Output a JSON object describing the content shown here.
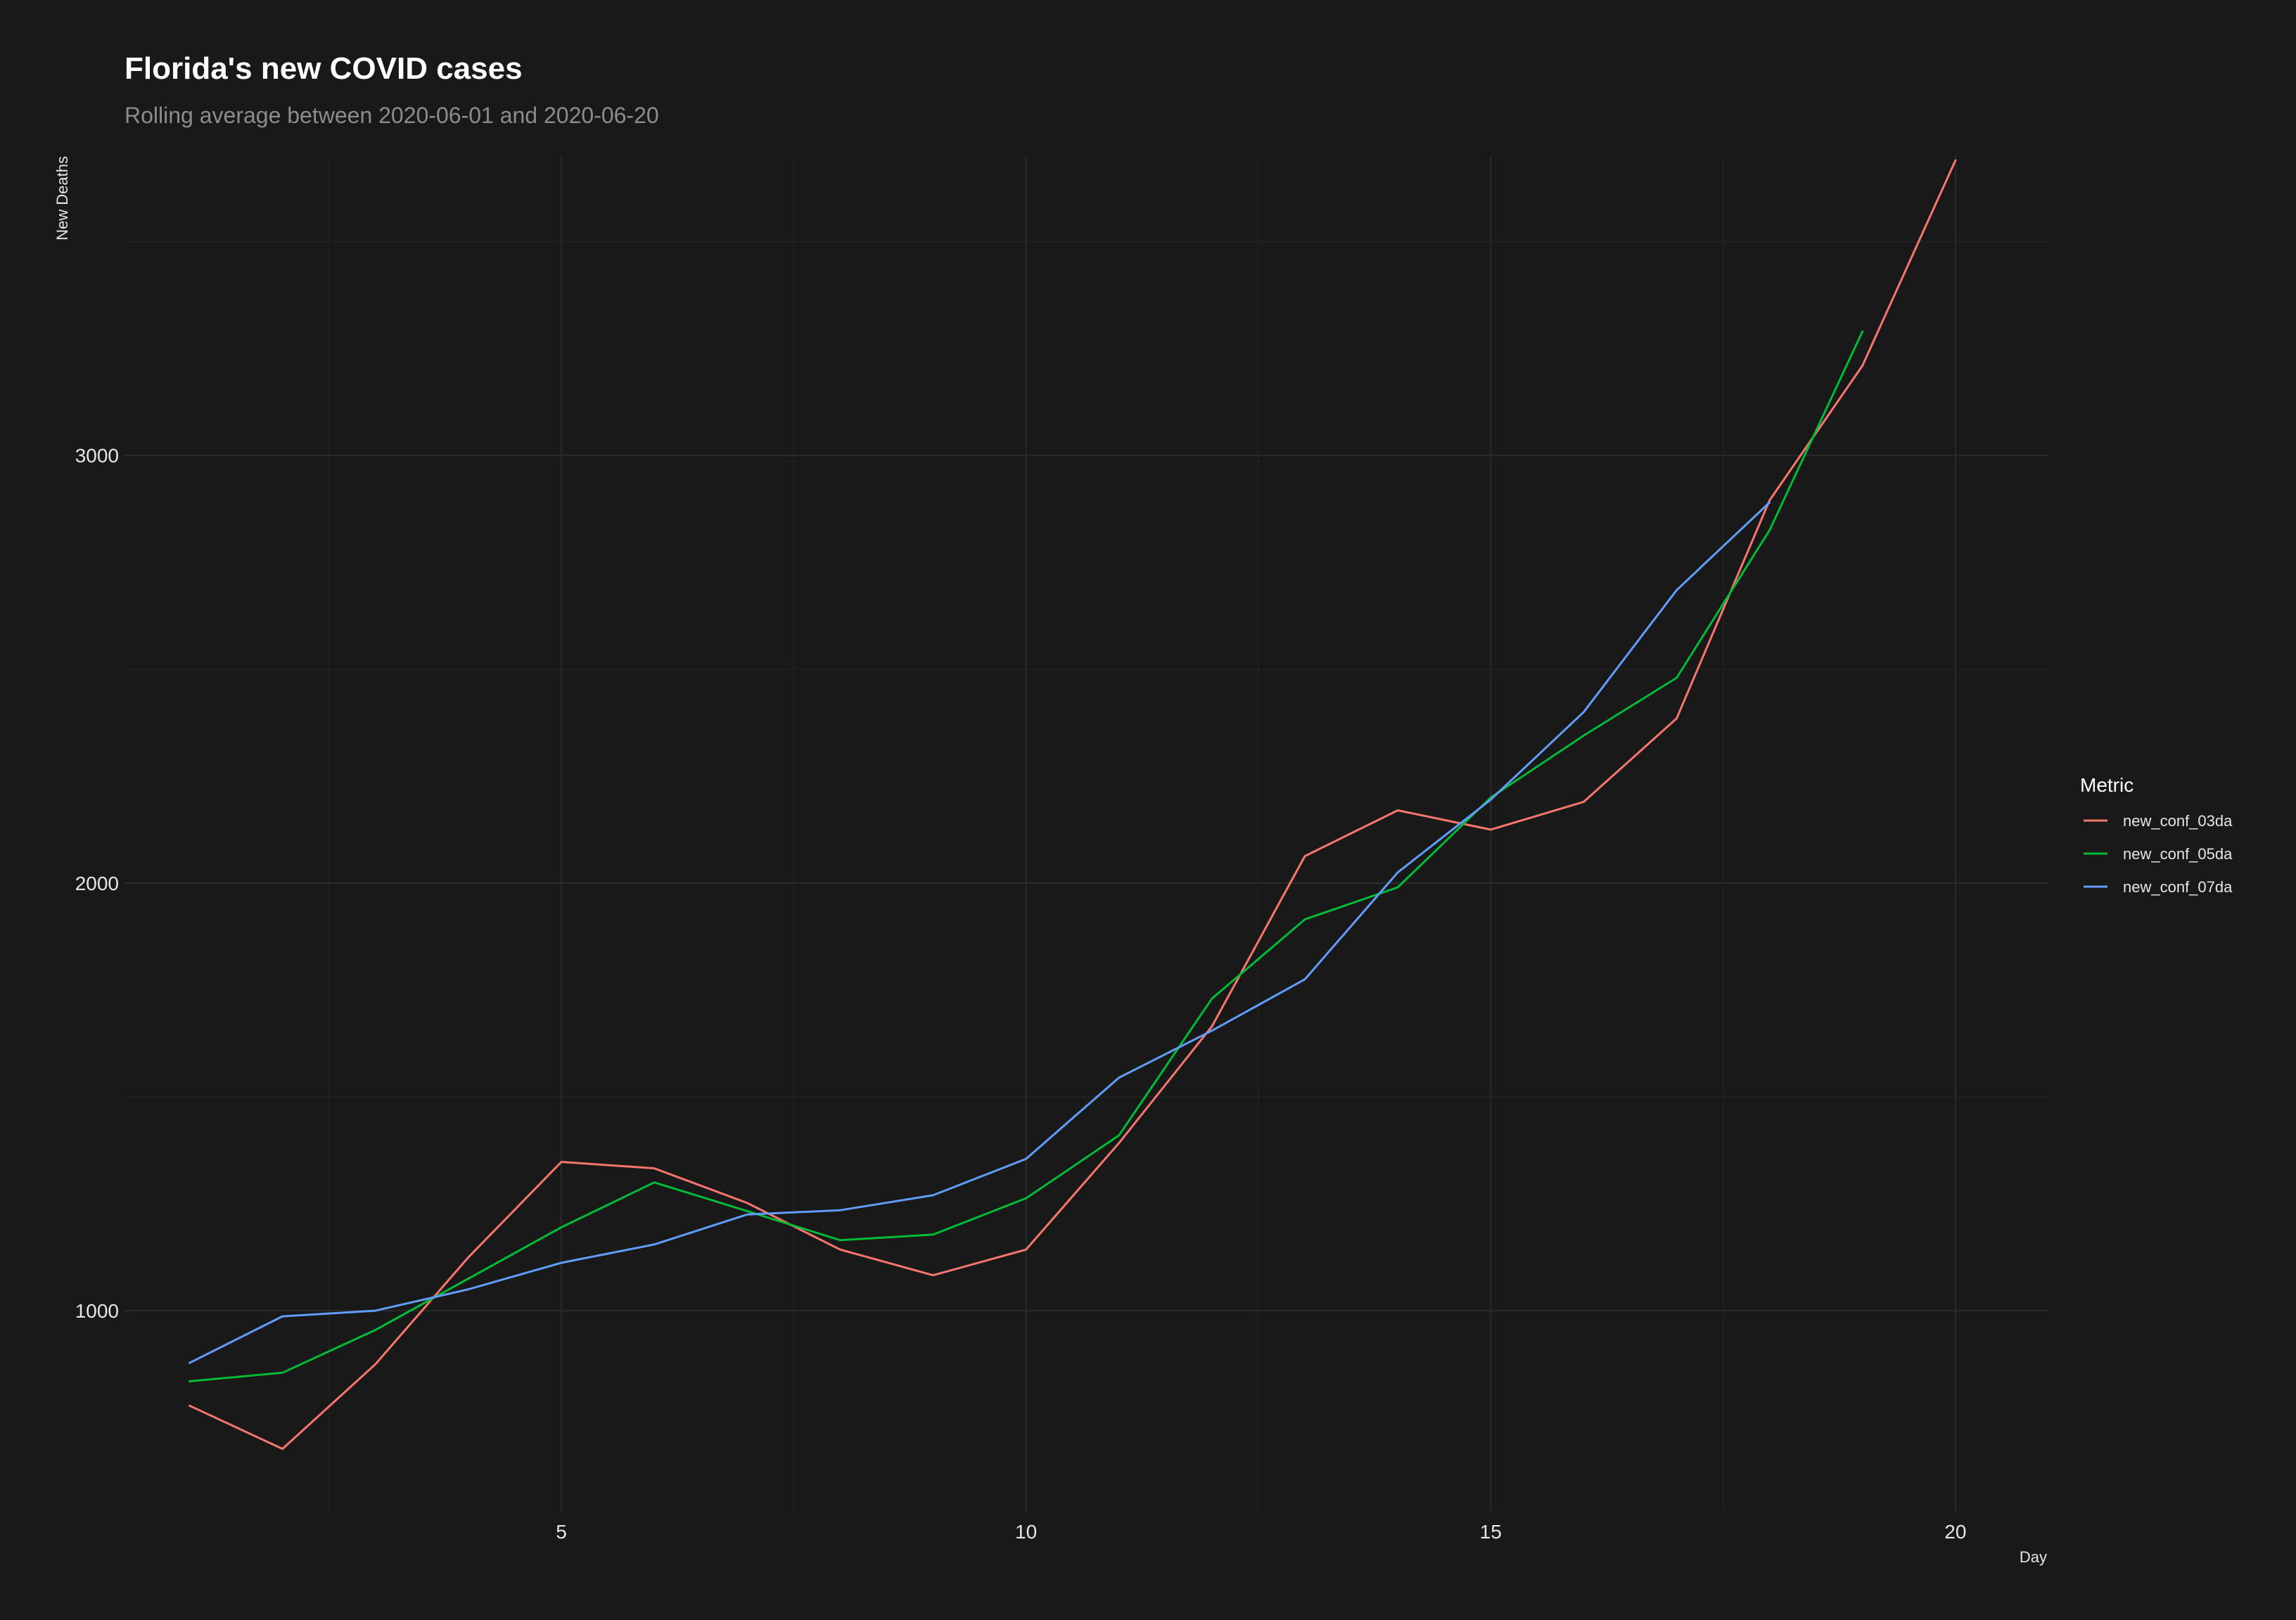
{
  "chart_data": {
    "type": "line",
    "title": "Florida's new COVID cases",
    "subtitle": "Rolling average between 2020-06-01 and 2020-06-20",
    "xlabel": "Day",
    "ylabel": "New Deaths",
    "xlim": [
      0.3,
      21
    ],
    "ylim": [
      530,
      3700
    ],
    "x_ticks": [
      5,
      10,
      15,
      20
    ],
    "y_ticks": [
      1000,
      2000,
      3000
    ],
    "grid": true,
    "legend": {
      "title": "Metric",
      "position": "right"
    },
    "series": [
      {
        "name": "new_conf_03da",
        "color": "#f8766d",
        "x": [
          1,
          2,
          3,
          4,
          5,
          6,
          7,
          8,
          9,
          10,
          11,
          12,
          13,
          14,
          15,
          16,
          17,
          18,
          19,
          20
        ],
        "values": [
          778,
          677,
          875,
          1125,
          1348,
          1333,
          1252,
          1143,
          1083,
          1143,
          1392,
          1665,
          2063,
          2170,
          2125,
          2190,
          2385,
          2895,
          3210,
          3690
        ]
      },
      {
        "name": "new_conf_05da",
        "color": "#00ba38",
        "x": [
          1,
          2,
          3,
          4,
          5,
          6,
          7,
          8,
          9,
          10,
          11,
          12,
          13,
          14,
          15,
          16,
          17,
          18,
          19
        ],
        "values": [
          835,
          855,
          955,
          1075,
          1195,
          1300,
          1233,
          1165,
          1178,
          1263,
          1410,
          1730,
          1915,
          1990,
          2200,
          2345,
          2480,
          2825,
          3290
        ]
      },
      {
        "name": "new_conf_07da",
        "color": "#619cff",
        "x": [
          1,
          2,
          3,
          4,
          5,
          6,
          7,
          8,
          9,
          10,
          11,
          12,
          13,
          14,
          15,
          16,
          17,
          18
        ],
        "values": [
          878,
          987,
          1000,
          1050,
          1112,
          1155,
          1225,
          1235,
          1270,
          1355,
          1545,
          1655,
          1775,
          2025,
          2195,
          2400,
          2685,
          2890
        ]
      }
    ]
  }
}
